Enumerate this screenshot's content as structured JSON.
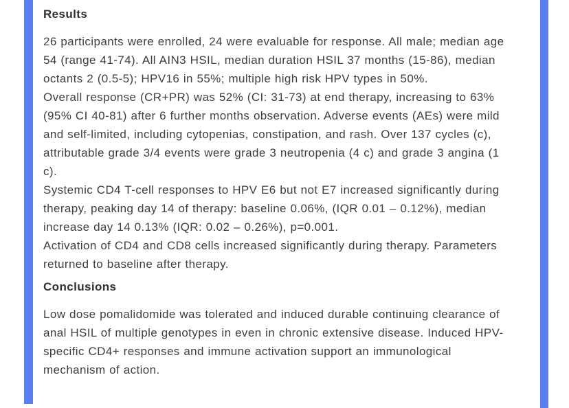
{
  "page": {
    "background_color": "#ffffff",
    "accent_color": "#5b7ef0",
    "text_color": "#3f3f3f",
    "heading_color": "#2f2f2f"
  },
  "abstract": {
    "results": {
      "heading": "Results",
      "paragraphs": [
        "26 participants were enrolled, 24 were evaluable for response. All male; median age 54 (range 41-74). All AIN3 HSIL, median duration HSIL 37 months (15-86), median octants 2 (0.5-5); HPV16 in 55%; multiple high risk HPV types in 50%.",
        "Overall response (CR+PR) was 52% (CI: 31-73) at end therapy, increasing to 63% (95% CI 40-81) after 6 further months observation. Adverse events (AEs) were mild and self-limited, including cytopenias, constipation, and rash. Over 137 cycles (c), attributable grade 3/4 events were grade 3 neutropenia (4 c) and grade 3 angina (1 c).",
        "Systemic CD4 T-cell responses to HPV E6 but not E7 increased significantly during therapy, peaking day 14 of therapy: baseline 0.06%, (IQR 0.01 – 0.12%), median increase day 14 0.13% (IQR: 0.02 – 0.26%), p=0.001.",
        "Activation of CD4 and CD8 cells increased significantly during therapy. Parameters returned to baseline after therapy."
      ]
    },
    "conclusions": {
      "heading": "Conclusions",
      "paragraphs": [
        "Low dose pomalidomide was tolerated and induced durable continuing clearance of anal HSIL of multiple genotypes in even in chronic extensive disease. Induced HPV-specific CD4+ responses and immune activation support an immunological mechanism of action."
      ]
    }
  }
}
